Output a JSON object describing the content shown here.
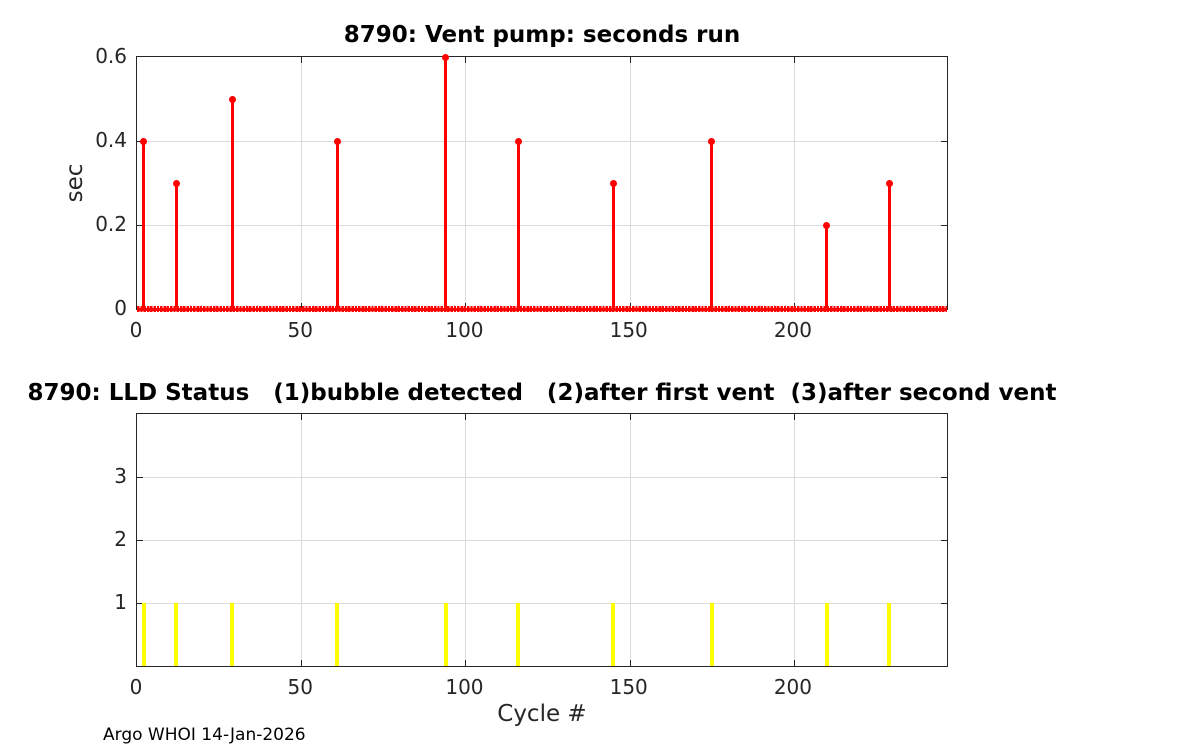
{
  "figure": {
    "footer": "Argo WHOI 14-Jan-2026",
    "background_color": "#FFFFFF",
    "axis_color": "#262626",
    "grid_color": "#DBDBDB",
    "label_color": "#262626"
  },
  "chart_data": [
    {
      "type": "stem",
      "title": "8790: Vent pump: seconds run",
      "xlabel": "",
      "ylabel": "sec",
      "xlim": [
        0,
        246.6
      ],
      "ylim": [
        0,
        0.6
      ],
      "xticks": [
        0,
        50,
        100,
        150,
        200
      ],
      "xtick_labels": [
        "0",
        "50",
        "100",
        "150",
        "200"
      ],
      "yticks": [
        0,
        0.2,
        0.4,
        0.6
      ],
      "ytick_labels": [
        "0",
        "0.2",
        "0.4",
        "0.6"
      ],
      "grid": true,
      "legend": "none",
      "stem_color": "#FF0000",
      "point_marker": "filled-circle",
      "baseline_dots": true,
      "points": [
        {
          "x": 2,
          "y": 0.4
        },
        {
          "x": 12,
          "y": 0.3
        },
        {
          "x": 29,
          "y": 0.5
        },
        {
          "x": 61,
          "y": 0.4
        },
        {
          "x": 94,
          "y": 0.6
        },
        {
          "x": 116,
          "y": 0.4
        },
        {
          "x": 145,
          "y": 0.3
        },
        {
          "x": 175,
          "y": 0.4
        },
        {
          "x": 210,
          "y": 0.2
        },
        {
          "x": 229,
          "y": 0.3
        }
      ]
    },
    {
      "type": "stem",
      "title": "8790: LLD Status   (1)bubble detected   (2)after first vent  (3)after second vent",
      "xlabel": "Cycle #",
      "ylabel": "",
      "xlim": [
        0,
        246.6
      ],
      "ylim": [
        0,
        4
      ],
      "xticks": [
        0,
        50,
        100,
        150,
        200
      ],
      "xtick_labels": [
        "0",
        "50",
        "100",
        "150",
        "200"
      ],
      "yticks": [
        1,
        2,
        3
      ],
      "ytick_labels": [
        "1",
        "2",
        "3"
      ],
      "grid": true,
      "legend": "none",
      "stem_color": "#FFFF00",
      "point_marker": "none",
      "baseline_dots": false,
      "points": [
        {
          "x": 2,
          "y": 1
        },
        {
          "x": 12,
          "y": 1
        },
        {
          "x": 29,
          "y": 1
        },
        {
          "x": 61,
          "y": 1
        },
        {
          "x": 94,
          "y": 1
        },
        {
          "x": 116,
          "y": 1
        },
        {
          "x": 145,
          "y": 1
        },
        {
          "x": 175,
          "y": 1
        },
        {
          "x": 210,
          "y": 1
        },
        {
          "x": 229,
          "y": 1
        }
      ]
    }
  ]
}
